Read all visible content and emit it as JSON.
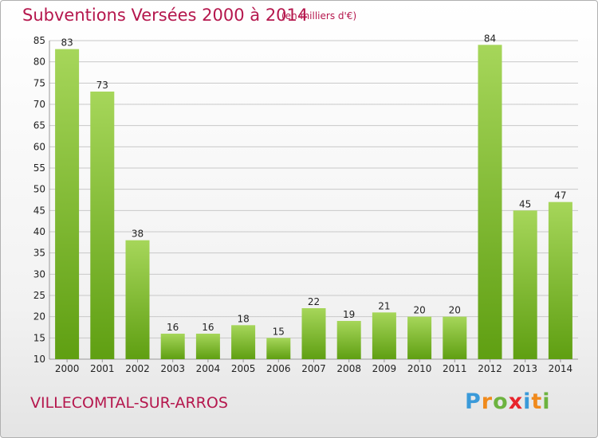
{
  "title": "Subventions Versées 2000 à 2014",
  "unit_note": "(en milliers d'€)",
  "town": "VILLECOMTAL-SUR-ARROS",
  "logo": {
    "letters": [
      "P",
      "r",
      "o",
      "x",
      "i",
      "t",
      "i"
    ],
    "colors": [
      "#3a9ad9",
      "#f08a1c",
      "#6db33f",
      "#e8242c",
      "#3a9ad9",
      "#f08a1c",
      "#6db33f"
    ]
  },
  "colors": {
    "bar_light": "#a6d65a",
    "bar_dark": "#5f9f12",
    "title": "#b5174d",
    "grid": "#c8c8c8"
  },
  "chart_data": {
    "type": "bar",
    "categories": [
      "2000",
      "2001",
      "2002",
      "2003",
      "2004",
      "2005",
      "2006",
      "2007",
      "2008",
      "2009",
      "2010",
      "2011",
      "2012",
      "2013",
      "2014"
    ],
    "values": [
      83,
      73,
      38,
      16,
      16,
      18,
      15,
      22,
      19,
      21,
      20,
      20,
      84,
      45,
      47
    ],
    "ylim": [
      10,
      85
    ],
    "yticks": [
      10,
      15,
      20,
      25,
      30,
      35,
      40,
      45,
      50,
      55,
      60,
      65,
      70,
      75,
      80,
      85
    ],
    "grid": true,
    "legend": "none"
  }
}
